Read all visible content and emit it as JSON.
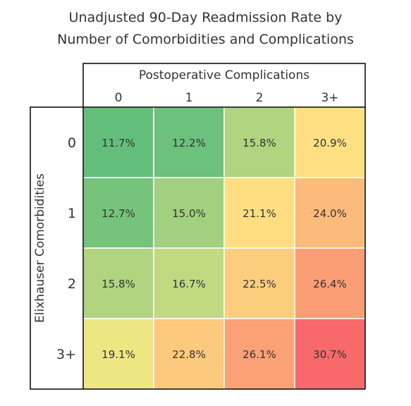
{
  "chart_data": {
    "type": "heatmap",
    "title": [
      "Unadjusted 90-Day Readmission Rate by",
      "Number of Comorbidities and Complications"
    ],
    "xlabel": "Postoperative Complications",
    "ylabel": "Elixhauser Comorbidities",
    "x_categories": [
      "0",
      "1",
      "2",
      "3+"
    ],
    "y_categories": [
      "0",
      "1",
      "2",
      "3+"
    ],
    "value_unit": "%",
    "values": [
      [
        11.7,
        12.2,
        15.8,
        20.9
      ],
      [
        12.7,
        15.0,
        21.1,
        24.0
      ],
      [
        15.8,
        16.7,
        22.5,
        26.4
      ],
      [
        19.1,
        22.8,
        26.1,
        30.7
      ]
    ],
    "cell_labels": [
      [
        "11.7%",
        "12.2%",
        "15.8%",
        "20.9%"
      ],
      [
        "12.7%",
        "15.0%",
        "21.1%",
        "24.0%"
      ],
      [
        "15.8%",
        "16.7%",
        "22.5%",
        "26.4%"
      ],
      [
        "19.1%",
        "22.8%",
        "26.1%",
        "30.7%"
      ]
    ],
    "color_scale": {
      "low": "#63BE7B",
      "mid": "#FFEB84",
      "high": "#F8696B"
    }
  }
}
